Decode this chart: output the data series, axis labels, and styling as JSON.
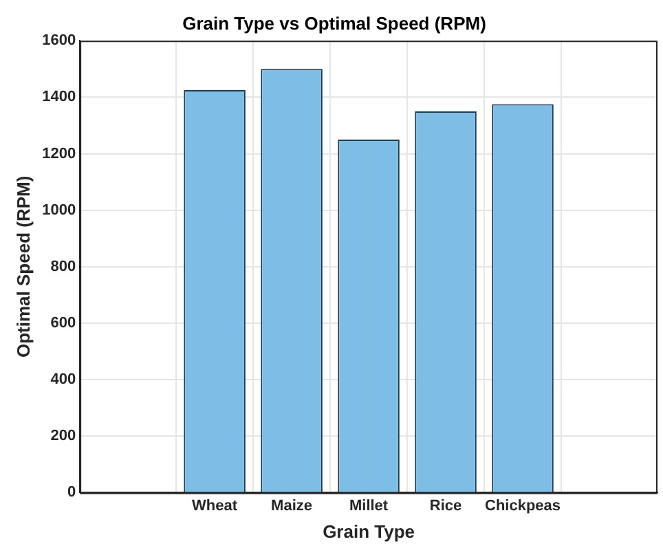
{
  "chart_data": {
    "type": "bar",
    "title": "Grain Type vs Optimal Speed (RPM)",
    "xlabel": "Grain Type",
    "ylabel": "Optimal Speed (RPM)",
    "categories": [
      "Wheat",
      "Maize",
      "Millet",
      "Rice",
      "Chickpeas"
    ],
    "values": [
      1425,
      1500,
      1250,
      1350,
      1375
    ],
    "color": "#7dbde6",
    "ylim": [
      0,
      1600
    ],
    "yticks": [
      0,
      200,
      400,
      600,
      800,
      1000,
      1200,
      1400,
      1600
    ],
    "grid": true,
    "legend": false
  }
}
